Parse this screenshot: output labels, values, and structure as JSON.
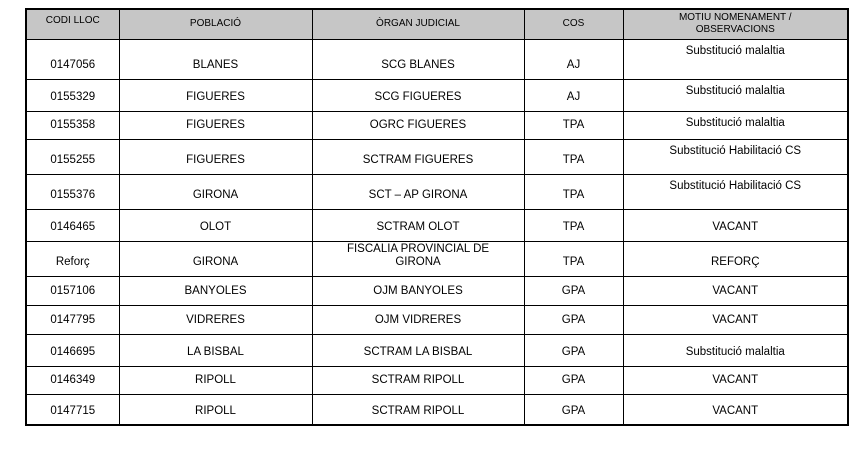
{
  "colors": {
    "header_bg": "#c6c6c6",
    "border": "#000000",
    "text": "#000000",
    "page_bg": "#ffffff"
  },
  "table": {
    "columns": [
      {
        "key": "codi",
        "label": "CODI LLOC"
      },
      {
        "key": "poblacio",
        "label": "POBLACIÓ"
      },
      {
        "key": "organ",
        "label": "ÒRGAN JUDICIAL"
      },
      {
        "key": "cos",
        "label": "COS"
      },
      {
        "key": "motiu",
        "label": "MOTIU NOMENAMENT /\nOBSERVACIONS"
      }
    ],
    "rows": [
      {
        "codi": "0147056",
        "poblacio": "BLANES",
        "organ": "SCG BLANES",
        "cos": "AJ",
        "motiu": "Substitució malaltia"
      },
      {
        "codi": "0155329",
        "poblacio": "FIGUERES",
        "organ": "SCG FIGUERES",
        "cos": "AJ",
        "motiu": "Substitució malaltia"
      },
      {
        "codi": "0155358",
        "poblacio": "FIGUERES",
        "organ": "OGRC FIGUERES",
        "cos": "TPA",
        "motiu": "Substitució malaltia"
      },
      {
        "codi": "0155255",
        "poblacio": "FIGUERES",
        "organ": "SCTRAM FIGUERES",
        "cos": "TPA",
        "motiu": "Substitució Habilitació CS"
      },
      {
        "codi": "0155376",
        "poblacio": "GIRONA",
        "organ": "SCT – AP GIRONA",
        "cos": "TPA",
        "motiu": "Substitució Habilitació CS"
      },
      {
        "codi": "0146465",
        "poblacio": "OLOT",
        "organ": "SCTRAM OLOT",
        "cos": "TPA",
        "motiu": "VACANT"
      },
      {
        "codi": "Reforç",
        "poblacio": "GIRONA",
        "organ": "FISCALIA PROVINCIAL DE\nGIRONA",
        "cos": "TPA",
        "motiu": "REFORÇ"
      },
      {
        "codi": "0157106",
        "poblacio": "BANYOLES",
        "organ": "OJM BANYOLES",
        "cos": "GPA",
        "motiu": "VACANT"
      },
      {
        "codi": "0147795",
        "poblacio": "VIDRERES",
        "organ": "OJM VIDRERES",
        "cos": "GPA",
        "motiu": "VACANT"
      },
      {
        "codi": "0146695",
        "poblacio": "LA BISBAL",
        "organ": "SCTRAM LA BISBAL",
        "cos": "GPA",
        "motiu": "Substitució malaltia"
      },
      {
        "codi": "0146349",
        "poblacio": "RIPOLL",
        "organ": "SCTRAM RIPOLL",
        "cos": "GPA",
        "motiu": "VACANT"
      },
      {
        "codi": "0147715",
        "poblacio": "RIPOLL",
        "organ": "SCTRAM RIPOLL",
        "cos": "GPA",
        "motiu": "VACANT"
      }
    ]
  }
}
